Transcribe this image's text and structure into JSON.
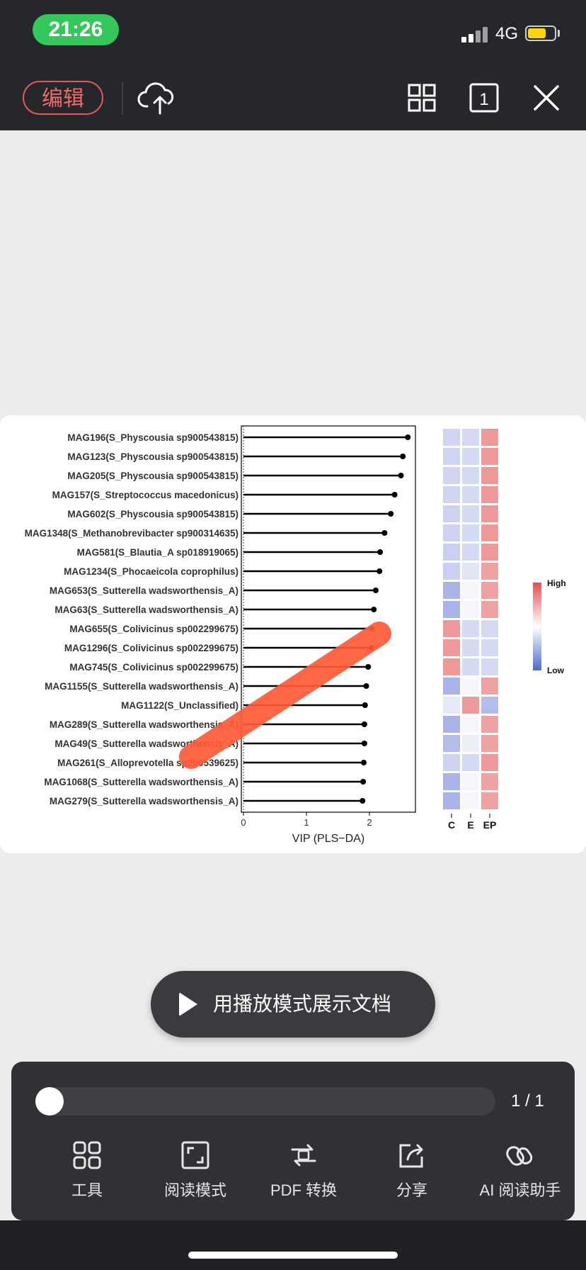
{
  "status_bar": {
    "time": "21:26",
    "network": "4G",
    "battery_level": 0.7,
    "signal_bars": 4
  },
  "toolbar": {
    "edit_label": "编辑",
    "page_indicator": "1"
  },
  "play_mode": {
    "label": "用播放模式展示文档"
  },
  "bottom_panel": {
    "page_count": "1 / 1",
    "progress": 0.0,
    "tools": [
      {
        "label": "工具",
        "icon": "grid-tools-icon"
      },
      {
        "label": "阅读模式",
        "icon": "expand-icon"
      },
      {
        "label": "PDF 转换",
        "icon": "pdf-convert-icon"
      },
      {
        "label": "分享",
        "icon": "share-icon"
      },
      {
        "label": "AI 阅读助手",
        "icon": "ai-assistant-icon"
      }
    ]
  },
  "chart_data": {
    "type": "lollipop",
    "xlabel": "VIP (PLS−DA)",
    "xlim": [
      0,
      2.8
    ],
    "xticks": [
      "0",
      "1",
      "2"
    ],
    "categories": [
      "MAG196(S_Physcousia sp900543815)",
      "MAG123(S_Physcousia sp900543815)",
      "MAG205(S_Physcousia sp900543815)",
      "MAG157(S_Streptococcus macedonicus)",
      "MAG602(S_Physcousia sp900543815)",
      "MAG1348(S_Methanobrevibacter sp900314635)",
      "MAG581(S_Blautia_A sp018919065)",
      "MAG1234(S_Phocaeicola coprophilus)",
      "MAG653(S_Sutterella wadsworthensis_A)",
      "MAG63(S_Sutterella wadsworthensis_A)",
      "MAG655(S_Colivicinus sp002299675)",
      "MAG1296(S_Colivicinus sp002299675)",
      "MAG745(S_Colivicinus sp002299675)",
      "MAG1155(S_Sutterella wadsworthensis_A)",
      "MAG1122(S_Unclassified)",
      "MAG289(S_Sutterella wadsworthensis_A)",
      "MAG49(S_Sutterella wadsworthensis_A)",
      "MAG261(S_Alloprevotella sp900539625)",
      "MAG1068(S_Sutterella wadsworthensis_A)",
      "MAG279(S_Sutterella wadsworthensis_A)"
    ],
    "values": [
      2.61,
      2.53,
      2.5,
      2.4,
      2.34,
      2.24,
      2.17,
      2.16,
      2.1,
      2.07,
      2.04,
      2.03,
      1.98,
      1.95,
      1.93,
      1.92,
      1.92,
      1.91,
      1.9,
      1.89
    ],
    "heatmap": {
      "columns": [
        "C",
        "E",
        "EP"
      ],
      "cells": [
        [
          "#d0d6f2",
          "#d4daf2",
          "#ef9a9a"
        ],
        [
          "#d0d6f2",
          "#d4daf2",
          "#ef9a9a"
        ],
        [
          "#d0d6f2",
          "#d4daf2",
          "#ef9a9a"
        ],
        [
          "#d0d6f2",
          "#d4daf2",
          "#ef9a9a"
        ],
        [
          "#cdd3f1",
          "#d4daf2",
          "#ef9a9a"
        ],
        [
          "#cdd3f1",
          "#d4daf2",
          "#ef9a9a"
        ],
        [
          "#c9d0f0",
          "#d4daf2",
          "#ef9a9a"
        ],
        [
          "#c9d0f0",
          "#e2e6f6",
          "#efa3a3"
        ],
        [
          "#aab4e8",
          "#f6f6fb",
          "#efa3a3"
        ],
        [
          "#aab4e8",
          "#f6f6fb",
          "#efa3a3"
        ],
        [
          "#ef9a9a",
          "#d4daf2",
          "#d4daf2"
        ],
        [
          "#ef9a9a",
          "#d4daf2",
          "#d4daf2"
        ],
        [
          "#ef9a9a",
          "#d4daf2",
          "#d4daf2"
        ],
        [
          "#aab4e8",
          "#f6f6fb",
          "#efa3a3"
        ],
        [
          "#e6e9f7",
          "#ef9a9a",
          "#b4bdea"
        ],
        [
          "#aab4e8",
          "#f6f6fb",
          "#efa3a3"
        ],
        [
          "#b4bdea",
          "#eceef8",
          "#efa3a3"
        ],
        [
          "#cdd3f1",
          "#d4daf2",
          "#ef9a9a"
        ],
        [
          "#aab4e8",
          "#f6f6fb",
          "#efa3a3"
        ],
        [
          "#aab4e8",
          "#f6f6fb",
          "#efa3a3"
        ]
      ]
    },
    "legend": {
      "high": "High",
      "low": "Low",
      "high_color": "#e05050",
      "low_color": "#4a6bd0"
    },
    "annotation_color": "#ff5a36"
  }
}
